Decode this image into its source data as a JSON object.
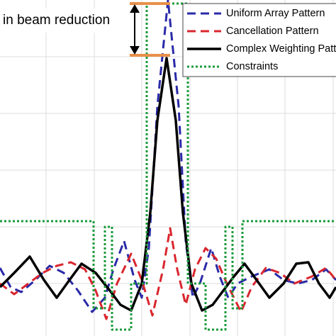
{
  "chart_data": {
    "type": "line",
    "annotation": "in beam reduction",
    "xlim": [
      0,
      474
    ],
    "ylim": [
      0,
      474
    ],
    "xticks": [
      65,
      133,
      200,
      268,
      335,
      402,
      470
    ],
    "yticks": [
      74,
      154,
      234,
      314,
      394
    ],
    "grid": true,
    "legend": "upper right",
    "series": [
      {
        "name": "Uniform Array Pattern",
        "color": "#2a2aa8",
        "style": "dashed",
        "x": [
          0,
          15,
          30,
          50,
          70,
          90,
          110,
          130,
          148,
          160,
          175,
          190,
          200,
          210,
          222,
          237,
          252,
          262,
          272,
          282,
          298,
          310,
          322,
          335,
          355,
          380,
          400,
          420,
          440,
          460,
          474
        ],
        "values": [
          96,
          69,
          62,
          79,
          99,
          89,
          64,
          34,
          54,
          94,
          134,
          79,
          54,
          124,
          324,
          474,
          324,
          134,
          54,
          74,
          124,
          84,
          54,
          74,
          84,
          94,
          79,
          74,
          79,
          94,
          79
        ]
      },
      {
        "name": "Cancellation Pattern",
        "color": "#d9262e",
        "style": "dashed",
        "x": [
          0,
          20,
          40,
          60,
          80,
          100,
          120,
          135,
          150,
          165,
          185,
          200,
          215,
          230,
          240,
          250,
          262,
          275,
          290,
          305,
          320,
          340,
          355,
          375,
          395,
          415,
          440,
          460,
          474
        ],
        "values": [
          74,
          59,
          74,
          89,
          99,
          104,
          94,
          64,
          24,
          74,
          116,
          79,
          29,
          94,
          152,
          94,
          44,
          94,
          124,
          109,
          74,
          34,
          69,
          96,
          89,
          74,
          84,
          96,
          79
        ]
      },
      {
        "name": "Complex Weighting Pattern",
        "color": "#000000",
        "style": "solid",
        "x": [
          0,
          20,
          42,
          62,
          80,
          98,
          115,
          135,
          155,
          170,
          185,
          200,
          212,
          222,
          235,
          248,
          258,
          270,
          285,
          300,
          315,
          330,
          345,
          362,
          380,
          400,
          418,
          435,
          450,
          465,
          474
        ],
        "values": [
          69,
          89,
          112,
          79,
          54,
          79,
          102,
          89,
          64,
          44,
          36,
          74,
          174,
          304,
          392,
          304,
          174,
          74,
          36,
          44,
          64,
          84,
          102,
          79,
          54,
          74,
          102,
          104,
          74,
          54,
          69
        ]
      },
      {
        "name": "Constraints",
        "color": "#1a9a3a",
        "style": "dotted",
        "x": [
          0,
          132,
          132,
          148,
          148,
          158,
          158,
          185,
          185,
          207,
          207,
          265,
          265,
          290,
          290,
          318,
          318,
          328,
          328,
          342,
          342,
          474
        ],
        "values": [
          162,
          162,
          39,
          39,
          154,
          154,
          9,
          9,
          74,
          74,
          469,
          469,
          74,
          74,
          9,
          9,
          154,
          154,
          39,
          39,
          162,
          162
        ]
      }
    ]
  }
}
